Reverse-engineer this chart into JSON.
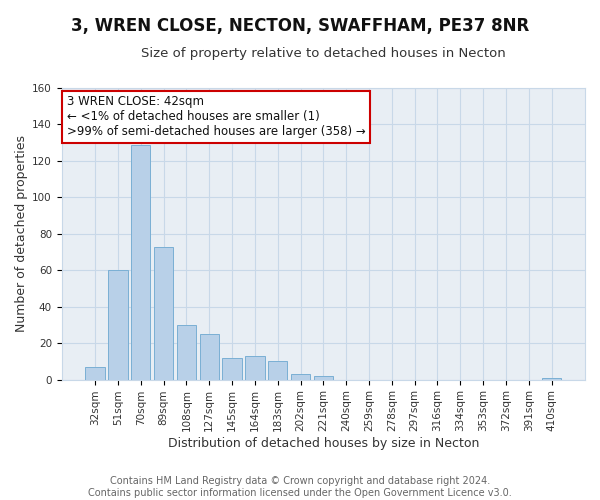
{
  "title": "3, WREN CLOSE, NECTON, SWAFFHAM, PE37 8NR",
  "subtitle": "Size of property relative to detached houses in Necton",
  "xlabel": "Distribution of detached houses by size in Necton",
  "ylabel": "Number of detached properties",
  "bar_labels": [
    "32sqm",
    "51sqm",
    "70sqm",
    "89sqm",
    "108sqm",
    "127sqm",
    "145sqm",
    "164sqm",
    "183sqm",
    "202sqm",
    "221sqm",
    "240sqm",
    "259sqm",
    "278sqm",
    "297sqm",
    "316sqm",
    "334sqm",
    "353sqm",
    "372sqm",
    "391sqm",
    "410sqm"
  ],
  "bar_values": [
    7,
    60,
    129,
    73,
    30,
    25,
    12,
    13,
    10,
    3,
    2,
    0,
    0,
    0,
    0,
    0,
    0,
    0,
    0,
    0,
    1
  ],
  "bar_color": "#b8d0e8",
  "bar_edge_color": "#7aafd4",
  "ylim": [
    0,
    160
  ],
  "yticks": [
    0,
    20,
    40,
    60,
    80,
    100,
    120,
    140,
    160
  ],
  "annotation_box_text_line1": "3 WREN CLOSE: 42sqm",
  "annotation_box_text_line2": "← <1% of detached houses are smaller (1)",
  "annotation_box_text_line3": ">99% of semi-detached houses are larger (358) →",
  "annotation_box_edge_color": "#cc0000",
  "footer_lines": [
    "Contains HM Land Registry data © Crown copyright and database right 2024.",
    "Contains public sector information licensed under the Open Government Licence v3.0."
  ],
  "grid_color": "#c8d8e8",
  "plot_bg_color": "#e8eef4",
  "fig_bg_color": "#ffffff",
  "title_fontsize": 12,
  "subtitle_fontsize": 9.5,
  "axis_label_fontsize": 9,
  "tick_fontsize": 7.5,
  "annotation_fontsize": 8.5,
  "footer_fontsize": 7
}
